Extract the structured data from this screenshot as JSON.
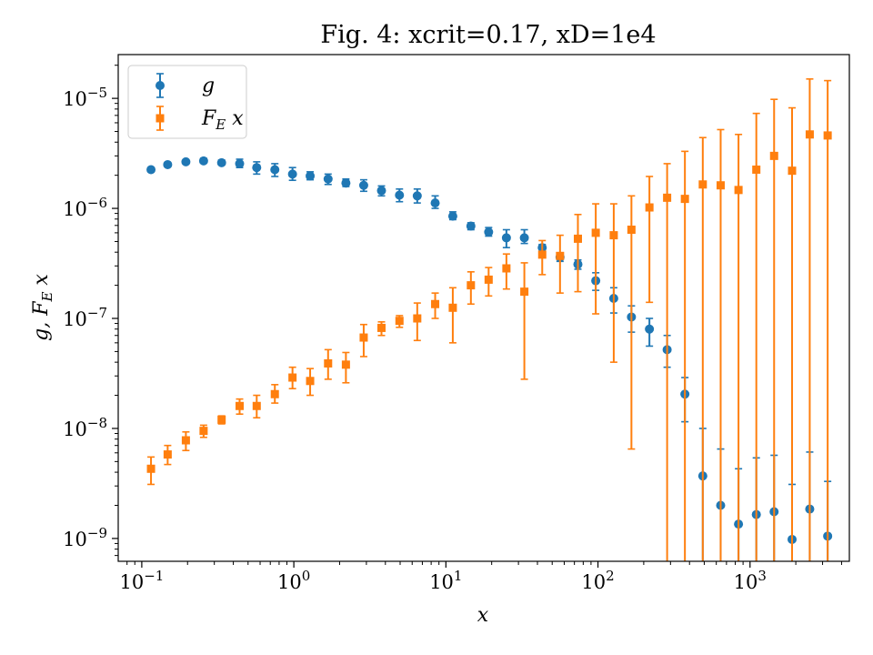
{
  "chart_data": {
    "type": "scatter",
    "title": "Fig. 4: xcrit=0.17, xD=1e4",
    "xlabel": "x",
    "ylabel": "g, F_E x",
    "xscale": "log",
    "yscale": "log",
    "xlim": [
      0.07,
      4500
    ],
    "ylim": [
      6.2e-10,
      2.5e-05
    ],
    "xticks": [
      {
        "value": 0.1,
        "label": "10",
        "exp": "−1"
      },
      {
        "value": 1,
        "label": "10",
        "exp": "0"
      },
      {
        "value": 10,
        "label": "10",
        "exp": "1"
      },
      {
        "value": 100,
        "label": "10",
        "exp": "2"
      },
      {
        "value": 1000,
        "label": "10",
        "exp": "3"
      }
    ],
    "yticks": [
      {
        "value": 1e-09,
        "label": "10",
        "exp": "−9"
      },
      {
        "value": 1e-08,
        "label": "10",
        "exp": "−8"
      },
      {
        "value": 1e-07,
        "label": "10",
        "exp": "−7"
      },
      {
        "value": 1e-06,
        "label": "10",
        "exp": "−6"
      },
      {
        "value": 1e-05,
        "label": "10",
        "exp": "−5"
      }
    ],
    "legend": {
      "placement": "top-left"
    },
    "grid": false,
    "x": [
      0.115,
      0.148,
      0.195,
      0.255,
      0.335,
      0.44,
      0.57,
      0.75,
      0.98,
      1.28,
      1.68,
      2.2,
      2.88,
      3.77,
      4.95,
      6.48,
      8.5,
      11.1,
      14.6,
      19.1,
      25.0,
      32.8,
      43.0,
      56.3,
      73.8,
      96.7,
      127,
      166,
      218,
      285,
      373,
      489,
      641,
      840,
      1100,
      1440,
      1890,
      2470,
      3240
    ],
    "series": [
      {
        "name": "g",
        "color": "#1f77b4",
        "marker": "circle",
        "y": [
          2.25e-06,
          2.5e-06,
          2.65e-06,
          2.7e-06,
          2.6e-06,
          2.55e-06,
          2.35e-06,
          2.25e-06,
          2.05e-06,
          1.97e-06,
          1.85e-06,
          1.7e-06,
          1.62e-06,
          1.45e-06,
          1.32e-06,
          1.3e-06,
          1.12e-06,
          8.5e-07,
          6.9e-07,
          6.1e-07,
          5.4e-07,
          5.4e-07,
          4.4e-07,
          3.6e-07,
          3.1e-07,
          2.2e-07,
          1.52e-07,
          1.03e-07,
          8e-08,
          5.2e-08,
          2.05e-08,
          3.7e-09,
          2e-09,
          1.35e-09,
          1.65e-09,
          1.75e-09,
          9.8e-10,
          1.85e-09,
          1.05e-09
        ],
        "yerr_low": [
          2.15e-06,
          2.4e-06,
          2.55e-06,
          2.6e-06,
          2.5e-06,
          2.35e-06,
          2.05e-06,
          1.95e-06,
          1.8e-06,
          1.82e-06,
          1.65e-06,
          1.58e-06,
          1.43e-06,
          1.3e-06,
          1.15e-06,
          1.12e-06,
          1e-06,
          7.9e-07,
          6.4e-07,
          5.6e-07,
          4.4e-07,
          4.8e-07,
          4e-07,
          3.3e-07,
          2.8e-07,
          1.8e-07,
          1.12e-07,
          7.5e-08,
          5.6e-08,
          3.6e-08,
          1.15e-08,
          null,
          null,
          null,
          null,
          null,
          null,
          null,
          null
        ],
        "yerr_high": [
          2.35e-06,
          2.6e-06,
          2.75e-06,
          2.85e-06,
          2.75e-06,
          2.8e-06,
          2.65e-06,
          2.55e-06,
          2.35e-06,
          2.15e-06,
          2.05e-06,
          1.85e-06,
          1.82e-06,
          1.6e-06,
          1.5e-06,
          1.5e-06,
          1.3e-06,
          9.3e-07,
          7.4e-07,
          6.7e-07,
          6.4e-07,
          6.4e-07,
          4.7e-07,
          3.9e-07,
          3.4e-07,
          2.6e-07,
          1.9e-07,
          1.3e-07,
          1e-07,
          7e-08,
          2.9e-08,
          1e-08,
          6.5e-09,
          4.3e-09,
          5.4e-09,
          5.7e-09,
          3.1e-09,
          6.1e-09,
          3.3e-09
        ]
      },
      {
        "name": "F_E x",
        "color": "#ff7f0e",
        "marker": "square",
        "y": [
          4.3e-09,
          5.8e-09,
          7.8e-09,
          9.5e-09,
          1.2e-08,
          1.6e-08,
          1.6e-08,
          2.05e-08,
          2.9e-08,
          2.7e-08,
          3.9e-08,
          3.8e-08,
          6.7e-08,
          8.2e-08,
          9.5e-08,
          1e-07,
          1.35e-07,
          1.25e-07,
          2e-07,
          2.25e-07,
          2.85e-07,
          1.75e-07,
          3.8e-07,
          3.7e-07,
          5.3e-07,
          6e-07,
          5.7e-07,
          6.4e-07,
          1.02e-06,
          1.25e-06,
          1.22e-06,
          1.65e-06,
          1.62e-06,
          1.47e-06,
          2.25e-06,
          3e-06,
          2.2e-06,
          4.7e-06,
          4.6e-06
        ],
        "yerr_low": [
          3.1e-09,
          4.7e-09,
          6.3e-09,
          8.3e-09,
          1.1e-08,
          1.35e-08,
          1.25e-08,
          1.7e-08,
          2.3e-08,
          2e-08,
          2.8e-08,
          2.6e-08,
          4.5e-08,
          7e-08,
          8.3e-08,
          6.3e-08,
          1e-07,
          6e-08,
          1.35e-07,
          1.6e-07,
          1.85e-07,
          2.8e-08,
          2.5e-07,
          1.7e-07,
          1.75e-07,
          1.1e-07,
          4e-08,
          6.5e-09,
          1.4e-07,
          null,
          null,
          null,
          null,
          null,
          null,
          null,
          null,
          null,
          null
        ],
        "yerr_high": [
          5.5e-09,
          7e-09,
          9.3e-09,
          1.07e-08,
          1.3e-08,
          1.85e-08,
          2e-08,
          2.5e-08,
          3.6e-08,
          3.5e-08,
          5.2e-08,
          4.9e-08,
          8.8e-08,
          9.3e-08,
          1.06e-07,
          1.38e-07,
          1.7e-07,
          1.9e-07,
          2.65e-07,
          2.9e-07,
          3.85e-07,
          3.2e-07,
          5.1e-07,
          5.7e-07,
          8.8e-07,
          1.1e-06,
          1.1e-06,
          1.3e-06,
          1.95e-06,
          2.55e-06,
          3.3e-06,
          4.4e-06,
          5.2e-06,
          4.7e-06,
          7.3e-06,
          9.8e-06,
          8.2e-06,
          1.5e-05,
          1.45e-05
        ]
      }
    ]
  }
}
